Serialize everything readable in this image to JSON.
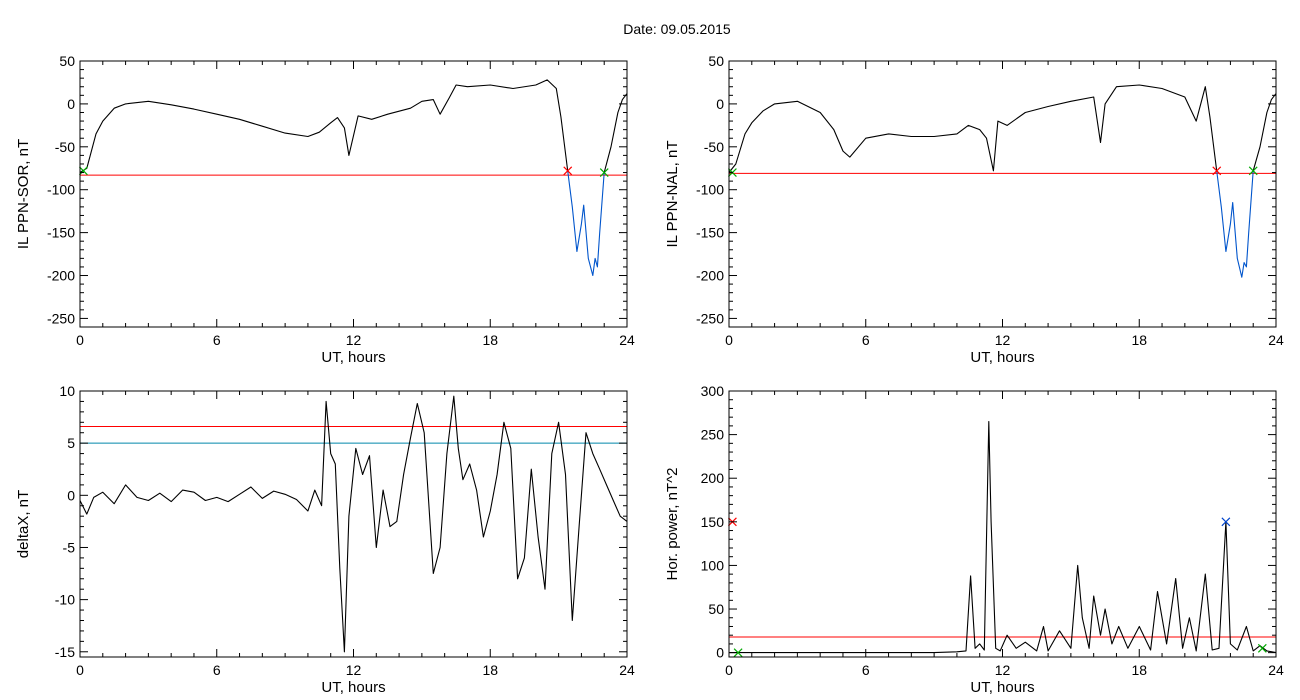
{
  "title": "Date:  09.05.2015",
  "chart_data": [
    {
      "id": "ppn-sor",
      "type": "line",
      "xlabel": "UT, hours",
      "ylabel": "IL PPN-SOR, nT",
      "xlim": [
        0,
        24
      ],
      "ylim": [
        -260,
        50
      ],
      "xticks": [
        0,
        6,
        12,
        18,
        24
      ],
      "yticks": [
        -250,
        -200,
        -150,
        -100,
        -50,
        0,
        50
      ],
      "threshold_lines": [
        {
          "y": -83,
          "color": "#ff0000"
        }
      ],
      "series": [
        {
          "color": "#000000",
          "x": [
            0,
            0.3,
            0.7,
            1.0,
            1.5,
            2.0,
            3.0,
            4.0,
            5.0,
            6.0,
            7.0,
            8.0,
            9.0,
            10.0,
            10.5,
            11.0,
            11.3,
            11.6,
            11.8,
            12.2,
            12.8,
            13.5,
            14.5,
            15.0,
            15.5,
            15.8,
            16.2,
            16.5,
            17.0,
            18.0,
            19.0,
            20.0,
            20.5,
            20.9,
            21.1,
            21.4
          ],
          "y": [
            -80,
            -75,
            -35,
            -20,
            -5,
            0,
            3,
            -1,
            -6,
            -12,
            -18,
            -26,
            -34,
            -38,
            -33,
            -22,
            -16,
            -28,
            -60,
            -14,
            -18,
            -12,
            -5,
            3,
            5,
            -12,
            7,
            22,
            20,
            22,
            18,
            22,
            28,
            18,
            -15,
            -78
          ]
        },
        {
          "color": "#000000",
          "x": [
            23.0,
            23.3,
            23.6,
            23.8,
            24.0
          ],
          "y": [
            -80,
            -50,
            -10,
            5,
            12
          ]
        },
        {
          "color": "#0055cc",
          "x": [
            21.4,
            21.6,
            21.8,
            22.0,
            22.1,
            22.3,
            22.5,
            22.6,
            22.7,
            22.8,
            23.0
          ],
          "y": [
            -78,
            -120,
            -172,
            -140,
            -118,
            -180,
            -200,
            -180,
            -190,
            -150,
            -80
          ]
        }
      ],
      "markers": [
        {
          "x": 0.15,
          "y": -78,
          "color": "#00aa00",
          "symbol": "x"
        },
        {
          "x": 21.4,
          "y": -78,
          "color": "#ff0000",
          "symbol": "x"
        },
        {
          "x": 23.0,
          "y": -80,
          "color": "#00aa00",
          "symbol": "x"
        }
      ]
    },
    {
      "id": "ppn-nal",
      "type": "line",
      "xlabel": "UT, hours",
      "ylabel": "IL PPN-NAL, nT",
      "xlim": [
        0,
        24
      ],
      "ylim": [
        -260,
        50
      ],
      "xticks": [
        0,
        6,
        12,
        18,
        24
      ],
      "yticks": [
        -250,
        -200,
        -150,
        -100,
        -50,
        0,
        50
      ],
      "threshold_lines": [
        {
          "y": -81,
          "color": "#ff0000"
        }
      ],
      "series": [
        {
          "color": "#000000",
          "x": [
            0,
            0.3,
            0.7,
            1.0,
            1.5,
            2.0,
            3.0,
            4.0,
            4.6,
            5.0,
            5.3,
            6.0,
            7.0,
            8.0,
            9.0,
            10.0,
            10.5,
            11.0,
            11.3,
            11.6,
            11.8,
            12.2,
            13.0,
            14.0,
            15.0,
            16.0,
            16.3,
            16.5,
            17.0,
            18.0,
            19.0,
            20.0,
            20.5,
            20.9,
            21.1,
            21.4
          ],
          "y": [
            -80,
            -70,
            -35,
            -22,
            -8,
            0,
            3,
            -10,
            -30,
            -55,
            -62,
            -40,
            -35,
            -38,
            -38,
            -35,
            -25,
            -30,
            -40,
            -78,
            -20,
            -25,
            -10,
            -3,
            3,
            8,
            -45,
            0,
            20,
            22,
            18,
            8,
            -20,
            20,
            -15,
            -78
          ]
        },
        {
          "color": "#000000",
          "x": [
            23.0,
            23.3,
            23.6,
            23.8,
            24.0
          ],
          "y": [
            -78,
            -50,
            -10,
            5,
            12
          ]
        },
        {
          "color": "#0055cc",
          "x": [
            21.4,
            21.6,
            21.8,
            22.0,
            22.1,
            22.3,
            22.5,
            22.6,
            22.7,
            22.8,
            23.0
          ],
          "y": [
            -78,
            -120,
            -172,
            -140,
            -115,
            -180,
            -202,
            -185,
            -190,
            -150,
            -78
          ]
        }
      ],
      "markers": [
        {
          "x": 0.15,
          "y": -80,
          "color": "#00aa00",
          "symbol": "x"
        },
        {
          "x": 21.4,
          "y": -78,
          "color": "#ff0000",
          "symbol": "x"
        },
        {
          "x": 23.0,
          "y": -78,
          "color": "#00aa00",
          "symbol": "x"
        }
      ]
    },
    {
      "id": "deltax",
      "type": "line",
      "xlabel": "UT, hours",
      "ylabel": "deltaX, nT",
      "xlim": [
        0,
        24
      ],
      "ylim": [
        -15.5,
        10
      ],
      "xticks": [
        0,
        6,
        12,
        18,
        24
      ],
      "yticks": [
        -15,
        -10,
        -5,
        0,
        5,
        10
      ],
      "threshold_lines": [
        {
          "y": 6.6,
          "color": "#ff0000"
        },
        {
          "y": 5.0,
          "color": "#0088aa"
        }
      ],
      "series": [
        {
          "color": "#000000",
          "x": [
            0,
            0.3,
            0.6,
            1.0,
            1.5,
            2.0,
            2.5,
            3.0,
            3.5,
            4.0,
            4.5,
            5.0,
            5.5,
            6.0,
            6.5,
            7.0,
            7.5,
            8.0,
            8.5,
            9.0,
            9.5,
            10.0,
            10.3,
            10.6,
            10.8,
            11.0,
            11.2,
            11.4,
            11.6,
            11.8,
            12.1,
            12.4,
            12.7,
            13.0,
            13.3,
            13.6,
            13.9,
            14.2,
            14.5,
            14.8,
            15.1,
            15.5,
            15.8,
            16.1,
            16.4,
            16.6,
            16.8,
            17.1,
            17.4,
            17.7,
            18.0,
            18.3,
            18.6,
            18.9,
            19.2,
            19.5,
            19.8,
            20.1,
            20.4,
            20.7,
            21.0,
            21.3,
            21.6,
            21.9,
            22.2,
            22.5,
            22.8,
            23.1,
            23.4,
            23.7,
            24.0
          ],
          "y": [
            -0.5,
            -1.8,
            -0.2,
            0.3,
            -0.8,
            1.0,
            -0.2,
            -0.5,
            0.2,
            -0.6,
            0.5,
            0.3,
            -0.5,
            -0.2,
            -0.6,
            0.1,
            0.8,
            -0.3,
            0.4,
            0.1,
            -0.4,
            -1.5,
            0.5,
            -1.0,
            9.0,
            4.0,
            3.0,
            -7.0,
            -15.0,
            -2.0,
            4.5,
            2.0,
            3.8,
            -5.0,
            0.5,
            -3.0,
            -2.5,
            2.0,
            5.5,
            8.8,
            6.0,
            -7.5,
            -5.0,
            4.0,
            9.5,
            4.5,
            1.5,
            3.0,
            0.5,
            -4.0,
            -1.5,
            2.0,
            7.0,
            4.5,
            -8.0,
            -6.0,
            2.5,
            -4.0,
            -9.0,
            4.0,
            7.0,
            2.0,
            -12.0,
            -3.0,
            6.0,
            4.0,
            2.5,
            1.0,
            -0.5,
            -2.0,
            -2.5
          ]
        }
      ],
      "markers": []
    },
    {
      "id": "hor-power",
      "type": "line",
      "xlabel": "UT, hours",
      "ylabel": "Hor. power, nT^2",
      "xlim": [
        0,
        24
      ],
      "ylim": [
        -5,
        300
      ],
      "xticks": [
        0,
        6,
        12,
        18,
        24
      ],
      "yticks": [
        0,
        50,
        100,
        150,
        200,
        250,
        300
      ],
      "threshold_lines": [
        {
          "y": 18,
          "color": "#ff0000"
        }
      ],
      "series": [
        {
          "color": "#000000",
          "x": [
            0,
            1.0,
            3.0,
            6.0,
            9.0,
            10.0,
            10.4,
            10.6,
            10.8,
            11.0,
            11.2,
            11.4,
            11.5,
            11.7,
            11.9,
            12.2,
            12.6,
            13.0,
            13.5,
            13.8,
            14.0,
            14.5,
            15.0,
            15.3,
            15.5,
            15.8,
            16.0,
            16.3,
            16.5,
            16.8,
            17.1,
            17.5,
            18.0,
            18.5,
            18.8,
            19.2,
            19.6,
            19.9,
            20.2,
            20.5,
            20.9,
            21.2,
            21.5,
            21.8,
            22.0,
            22.3,
            22.7,
            23.0,
            23.3,
            23.6,
            24.0
          ],
          "y": [
            0,
            0,
            0,
            0,
            0,
            1,
            2,
            88,
            5,
            10,
            3,
            265,
            150,
            5,
            2,
            20,
            5,
            12,
            2,
            30,
            2,
            25,
            5,
            100,
            40,
            5,
            65,
            20,
            50,
            10,
            30,
            5,
            30,
            3,
            70,
            10,
            85,
            5,
            40,
            2,
            90,
            3,
            5,
            150,
            10,
            3,
            30,
            2,
            8,
            2,
            0
          ]
        }
      ],
      "markers": [
        {
          "x": 0.15,
          "y": 150,
          "color": "#ff0000",
          "symbol": "x"
        },
        {
          "x": 21.8,
          "y": 150,
          "color": "#0044cc",
          "symbol": "x"
        },
        {
          "x": 0.4,
          "y": 0,
          "color": "#00aa00",
          "symbol": "x"
        },
        {
          "x": 23.4,
          "y": 5,
          "color": "#00aa00",
          "symbol": "x"
        }
      ]
    }
  ]
}
